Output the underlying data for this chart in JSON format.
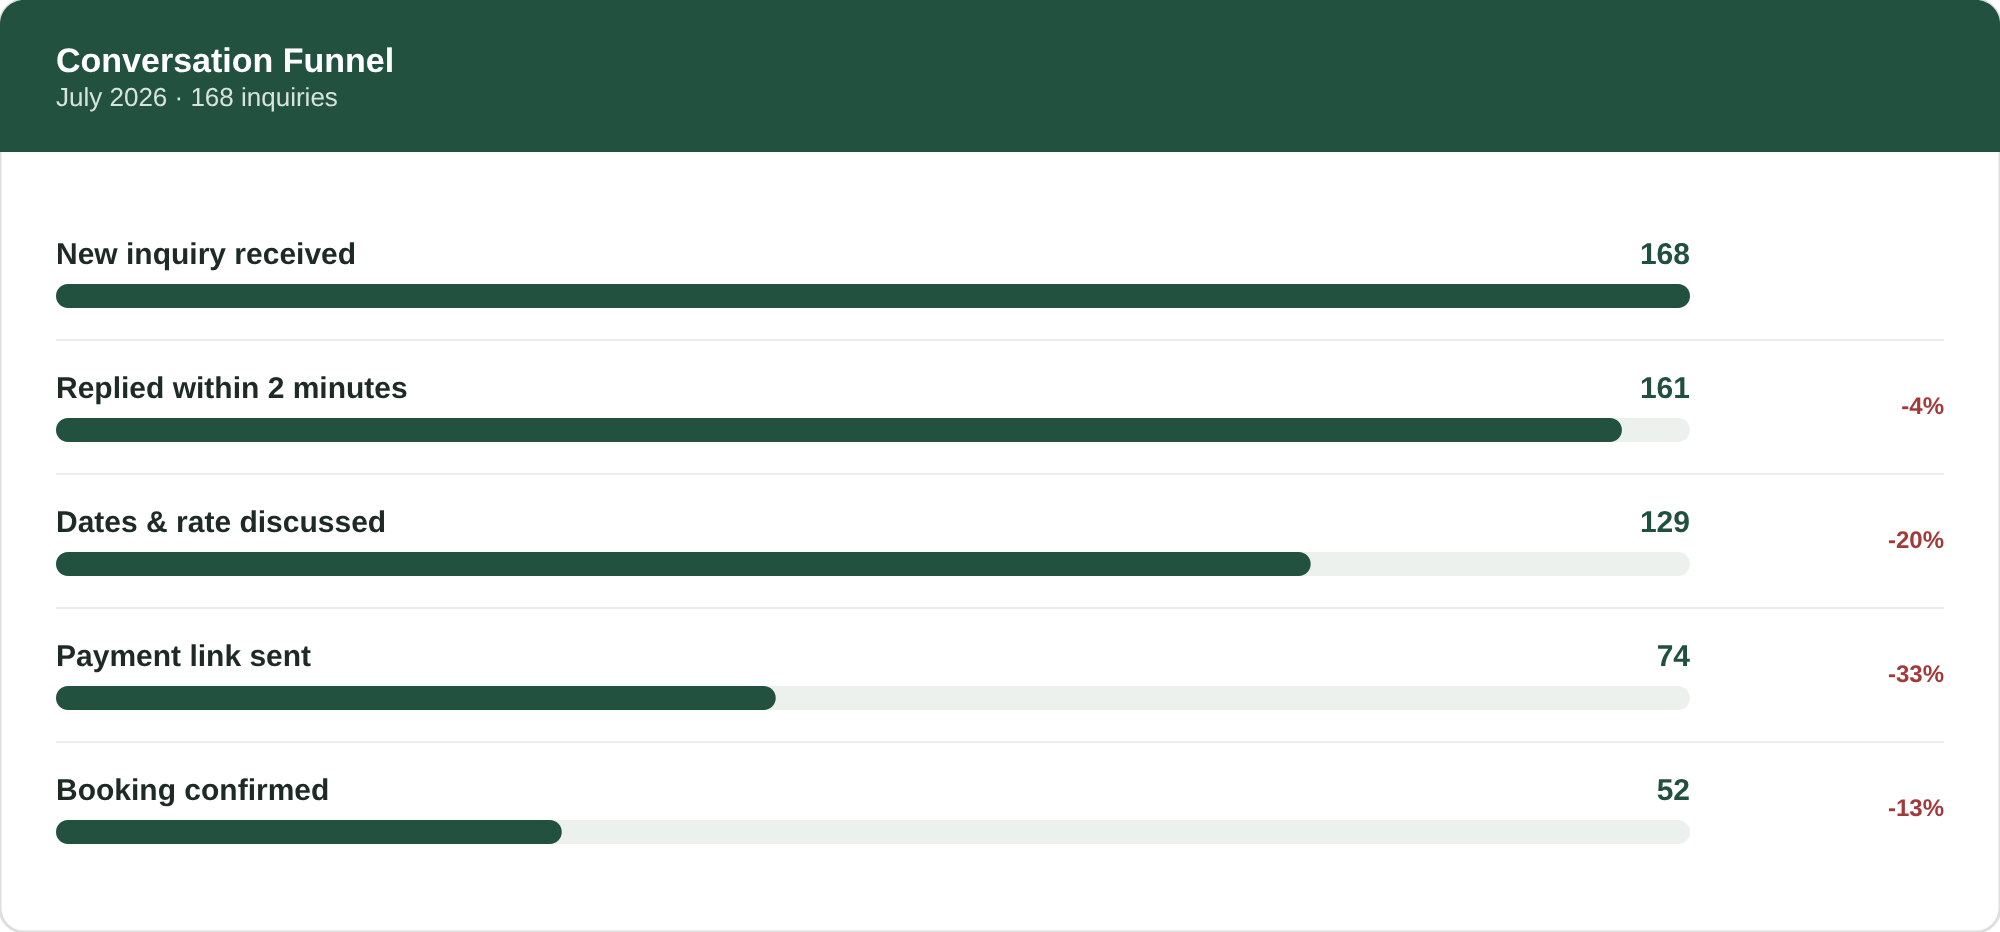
{
  "chart_data": {
    "type": "bar",
    "orientation": "horizontal",
    "title": "Conversation Funnel",
    "subtitle": "July 2026 · 168 inquiries",
    "categories": [
      "New inquiry received",
      "Replied within 2 minutes",
      "Dates & rate discussed",
      "Payment link sent",
      "Booking confirmed"
    ],
    "values": [
      168,
      161,
      129,
      74,
      52
    ],
    "color": "#22523f",
    "xlim": [
      0,
      168
    ],
    "data_labels": true,
    "grid": "y",
    "annotations": [
      "-4%",
      "-20%",
      "-33%",
      "-13%"
    ]
  }
}
